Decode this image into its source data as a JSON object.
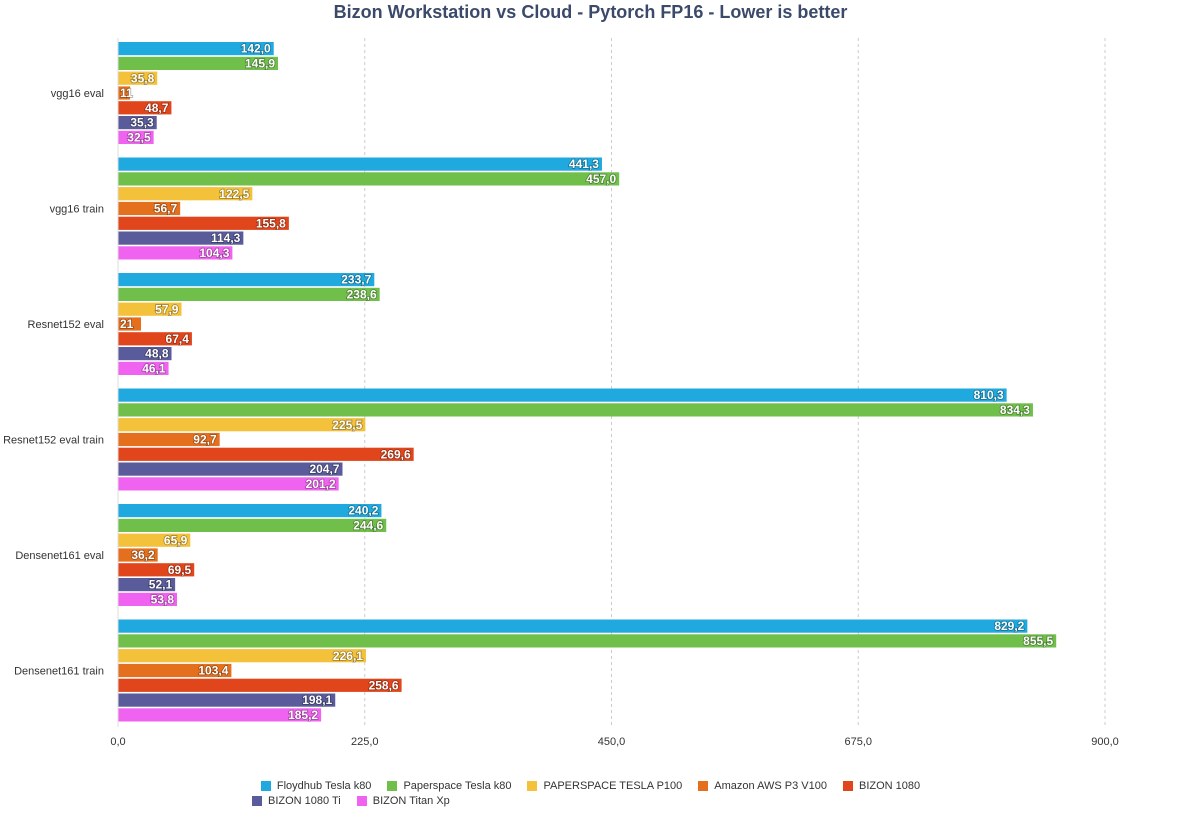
{
  "chart_data": {
    "type": "bar",
    "orientation": "horizontal",
    "title": "Bizon Workstation vs Cloud - Pytorch FP16 - Lower is better",
    "categories": [
      "vgg16 eval",
      "vgg16 train",
      "Resnet152 eval",
      "Resnet152 eval train",
      "Densenet161 eval",
      "Densenet161 train"
    ],
    "xlim": [
      0,
      900
    ],
    "ticks": [
      "0,0",
      "225,0",
      "450,0",
      "675,0",
      "900,0"
    ],
    "tick_values": [
      0,
      225,
      450,
      675,
      900
    ],
    "grid": true,
    "legend_position": "bottom",
    "series": [
      {
        "name": "Floydhub Tesla k80",
        "color": "#1fa9de",
        "values": [
          142.0,
          441.3,
          233.7,
          810.3,
          240.2,
          829.2
        ],
        "labels": [
          "142,0",
          "441,3",
          "233,7",
          "810,3",
          "240,2",
          "829,2"
        ]
      },
      {
        "name": "Paperspace Tesla k80",
        "color": "#6fbf4a",
        "values": [
          145.9,
          457.0,
          238.6,
          834.3,
          244.6,
          855.5
        ],
        "labels": [
          "145,9",
          "457,0",
          "238,6",
          "834,3",
          "244,6",
          "855,5"
        ]
      },
      {
        "name": "PAPERSPACE TESLA P100",
        "color": "#f3c13a",
        "values": [
          35.8,
          122.5,
          57.9,
          225.5,
          65.9,
          226.1
        ],
        "labels": [
          "35,8",
          "122,5",
          "57,9",
          "225,5",
          "65,9",
          "226,1"
        ]
      },
      {
        "name": "Amazon AWS P3 V100",
        "color": "#e4701e",
        "values": [
          11,
          56.7,
          21,
          92.7,
          36.2,
          103.4
        ],
        "labels": [
          "11",
          "56,7",
          "21",
          "92,7",
          "36,2",
          "103,4"
        ]
      },
      {
        "name": "BIZON 1080",
        "color": "#e0451b",
        "values": [
          48.7,
          155.8,
          67.4,
          269.6,
          69.5,
          258.6
        ],
        "labels": [
          "48,7",
          "155,8",
          "67,4",
          "269,6",
          "69,5",
          "258,6"
        ]
      },
      {
        "name": "BIZON 1080 Ti",
        "color": "#5a5b9b",
        "values": [
          35.3,
          114.3,
          48.8,
          204.7,
          52.1,
          198.1
        ],
        "labels": [
          "35,3",
          "114,3",
          "48,8",
          "204,7",
          "52,1",
          "198,1"
        ]
      },
      {
        "name": "BIZON Titan Xp",
        "color": "#f062f0",
        "values": [
          32.5,
          104.3,
          46.1,
          201.2,
          53.8,
          185.2
        ],
        "labels": [
          "32,5",
          "104,3",
          "46,1",
          "201,2",
          "53,8",
          "185,2"
        ]
      }
    ]
  }
}
